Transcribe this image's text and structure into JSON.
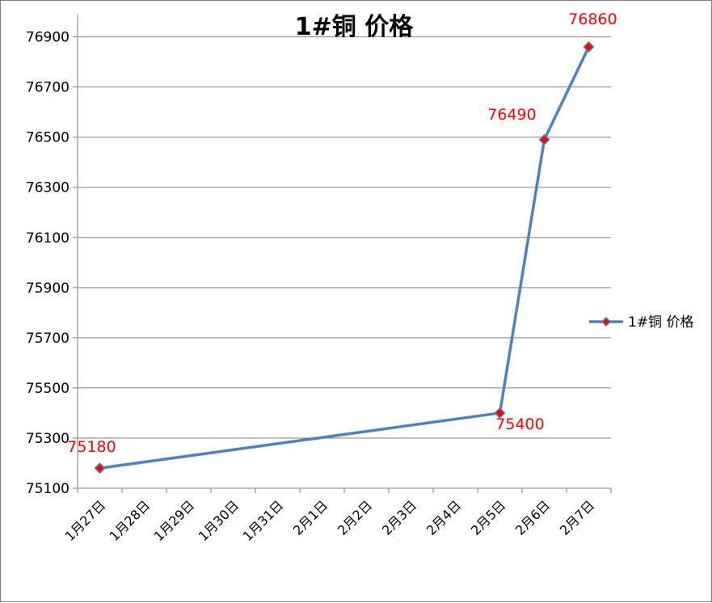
{
  "chart_data": {
    "type": "line",
    "title": "1#铜 价格",
    "categories": [
      "1月27日",
      "1月28日",
      "1月29日",
      "1月30日",
      "1月31日",
      "2月1日",
      "2月2日",
      "2月3日",
      "2月4日",
      "2月5日",
      "2月6日",
      "2月7日"
    ],
    "series": [
      {
        "name": "1#铜 价格",
        "points": [
          {
            "x": "1月27日",
            "y": 75180
          },
          {
            "x": "2月5日",
            "y": 75400
          },
          {
            "x": "2月6日",
            "y": 76490
          },
          {
            "x": "2月7日",
            "y": 76860
          }
        ]
      }
    ],
    "data_labels": [
      "75180",
      "75400",
      "76490",
      "76860"
    ],
    "yticks": [
      "75100",
      "75300",
      "75500",
      "75700",
      "75900",
      "76100",
      "76300",
      "76500",
      "76700",
      "76900"
    ],
    "ylim": [
      75100,
      76989
    ],
    "grid": true,
    "legend_position": "right",
    "colors": {
      "line": "#4f81bd",
      "marker": "#ff0000",
      "label": "#ff0000",
      "grid": "#808080"
    }
  }
}
